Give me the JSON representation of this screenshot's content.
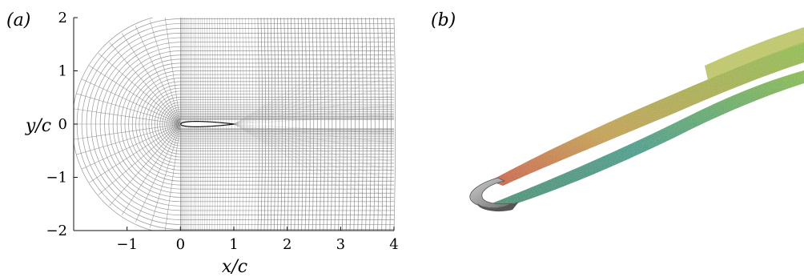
{
  "panel_a": {
    "label": "(a)",
    "chart_data": {
      "type": "diagram",
      "description_kind": "O-grid / C-grid mesh around an airfoil",
      "xlabel": "x/c",
      "ylabel": "y/c",
      "xlim": [
        -2,
        4
      ],
      "ylim": [
        -2,
        2
      ],
      "xticks": [
        -1,
        0,
        1,
        2,
        3,
        4
      ],
      "yticks": [
        -2,
        -1,
        0,
        1,
        2
      ],
      "xtick_labels": [
        "−1",
        "0",
        "1",
        "2",
        "3",
        "4"
      ],
      "ytick_labels": [
        "−2",
        "−1",
        "0",
        "1",
        "2"
      ],
      "airfoil_chord": [
        0,
        1
      ],
      "line_color": "#777777",
      "airfoil_color": "#ffffff"
    }
  },
  "panel_b": {
    "label": "(b)",
    "colors": {
      "airfoil_surface": "#a6a6a6",
      "upper_wake_start": "#d2552a",
      "upper_wake_mid": "#c8b43a",
      "lower_wake": "#2f9a7a",
      "lower_wake_end": "#8bbf3a"
    }
  }
}
